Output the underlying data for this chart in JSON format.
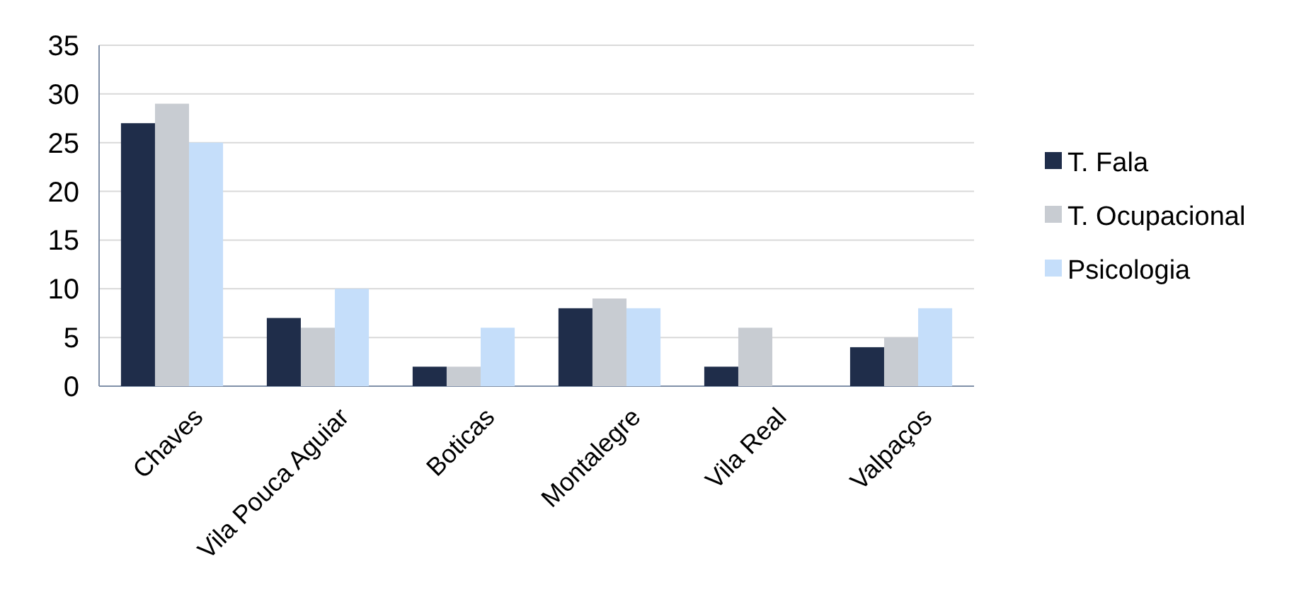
{
  "chart_data": {
    "type": "bar",
    "categories": [
      "Chaves",
      "Vila Pouca Aguiar",
      "Boticas",
      "Montalegre",
      "Vila Real",
      "Valpaços"
    ],
    "series": [
      {
        "name": "T. Fala",
        "color": "#1f2d4a",
        "values": [
          27,
          7,
          2,
          8,
          2,
          4
        ]
      },
      {
        "name": "T. Ocupacional",
        "color": "#c8ccd2",
        "values": [
          29,
          6,
          2,
          9,
          6,
          5
        ]
      },
      {
        "name": "Psicologia",
        "color": "#c5defa",
        "values": [
          25,
          10,
          6,
          8,
          0,
          8
        ]
      }
    ],
    "ylim": [
      0,
      35
    ],
    "yticks": [
      0,
      5,
      10,
      15,
      20,
      25,
      30,
      35
    ],
    "grid": "y",
    "legend": "right"
  }
}
